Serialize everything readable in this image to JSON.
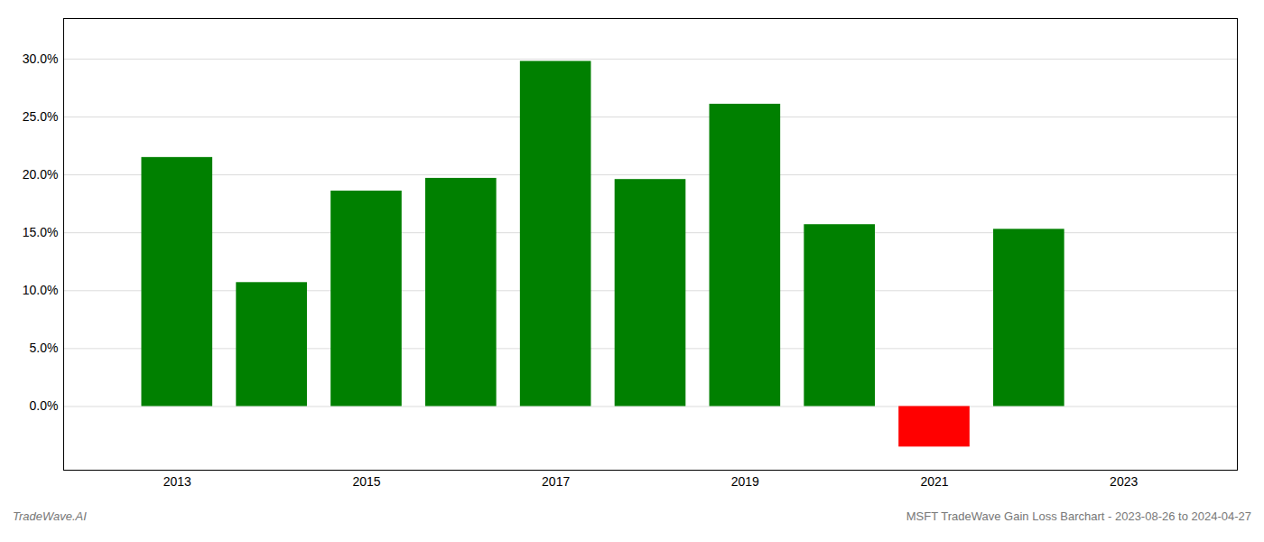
{
  "chart_data": {
    "type": "bar",
    "title": "MSFT TradeWave Gain Loss Barchart - 2023-08-26 to 2024-04-27",
    "annotations": [
      "TradeWave.AI"
    ],
    "x": [
      2013,
      2014,
      2015,
      2016,
      2017,
      2018,
      2019,
      2020,
      2021,
      2022
    ],
    "values": [
      0.215,
      0.107,
      0.186,
      0.197,
      0.298,
      0.196,
      0.261,
      0.157,
      -0.035,
      0.153
    ],
    "colors": [
      "#008000",
      "#008000",
      "#008000",
      "#008000",
      "#008000",
      "#008000",
      "#008000",
      "#008000",
      "#ff0000",
      "#008000"
    ],
    "xlim": [
      2011.8,
      2024.2
    ],
    "xticks": [
      2013,
      2015,
      2017,
      2019,
      2021,
      2023
    ],
    "ylim": [
      -0.055,
      0.335
    ],
    "yticks": [
      {
        "value": 0.0,
        "label": "0.0%"
      },
      {
        "value": 0.05,
        "label": "5.0%"
      },
      {
        "value": 0.1,
        "label": "10.0%"
      },
      {
        "value": 0.15,
        "label": "15.0%"
      },
      {
        "value": 0.2,
        "label": "20.0%"
      },
      {
        "value": 0.25,
        "label": "25.0%"
      },
      {
        "value": 0.3,
        "label": "30.0%"
      }
    ],
    "grid": true
  }
}
